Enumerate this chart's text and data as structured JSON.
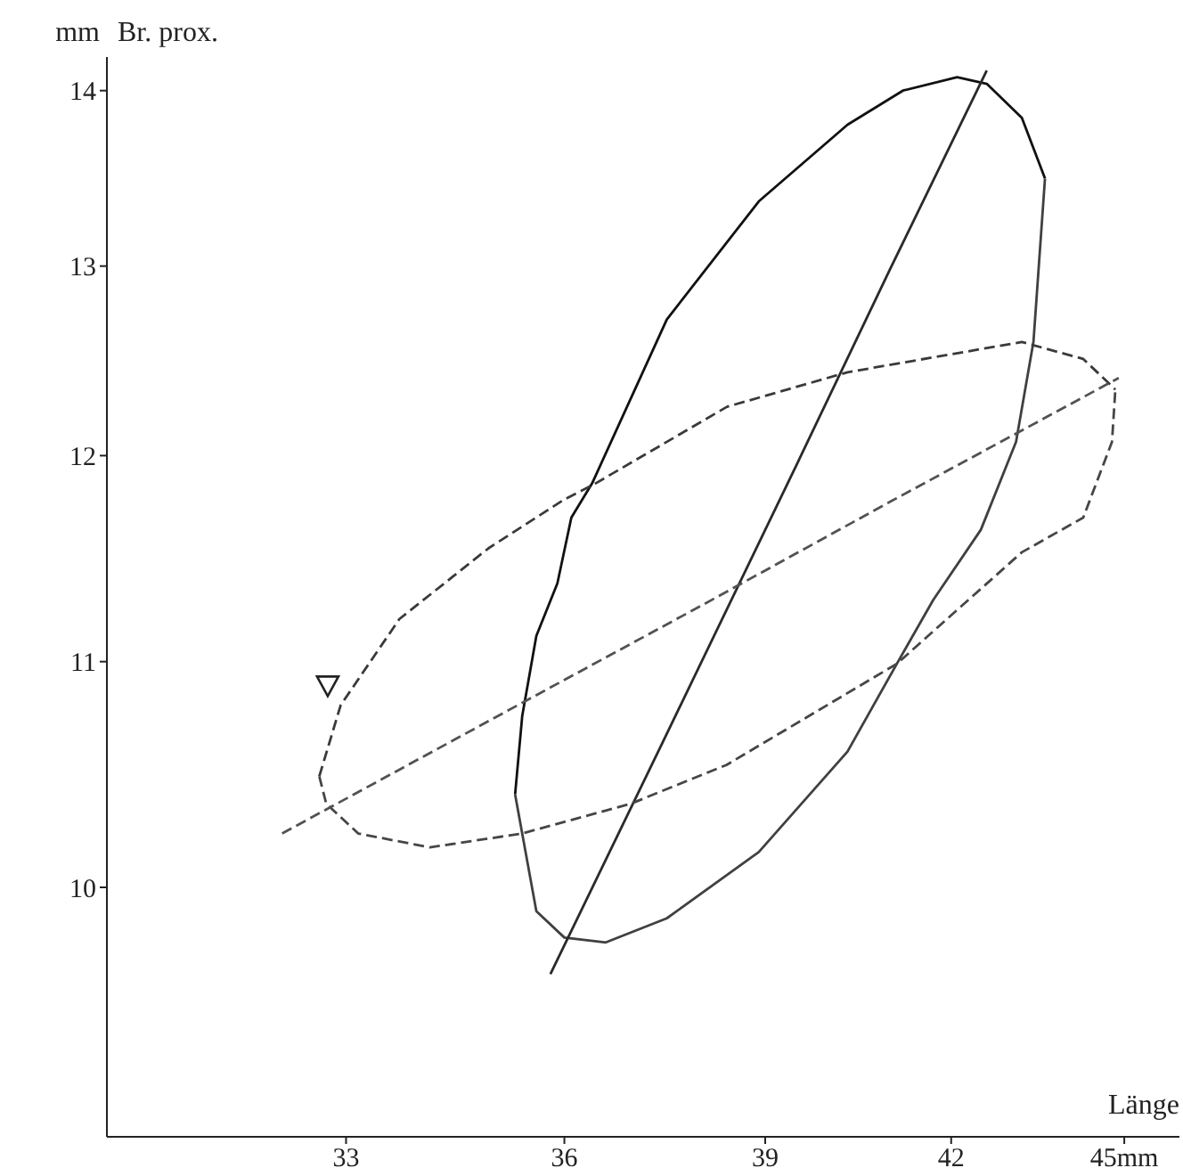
{
  "chart_data": {
    "type": "line",
    "xlabel": "Länge",
    "ylabel": "Br. prox.",
    "annotations": [
      "mm"
    ],
    "log": "xy",
    "grid": false,
    "xlim": [
      30,
      46
    ],
    "xticks": [
      33,
      36,
      39,
      42,
      {
        "value": 45,
        "label": "45mm"
      }
    ],
    "ylim": [
      9,
      14.2
    ],
    "yticks": [
      10,
      11,
      12,
      13,
      14
    ],
    "series": [
      {
        "color": "#111111",
        "line_style": "solid",
        "marker": "none",
        "x": [
          35.3,
          35.4,
          35.6,
          35.9,
          36.1,
          36.4,
          37.5,
          38.9,
          40.3,
          41.2,
          42.1,
          42.6,
          43.2,
          43.6
        ],
        "values": [
          10.4,
          10.75,
          11.12,
          11.37,
          11.69,
          11.86,
          12.71,
          13.36,
          13.8,
          14.0,
          14.08,
          14.04,
          13.84,
          13.49
        ]
      },
      {
        "color": "#404040",
        "line_style": "solid",
        "marker": "none",
        "x": [
          35.3,
          35.6,
          36.0,
          36.6,
          37.5,
          38.9,
          40.3,
          41.1,
          41.7,
          42.5,
          43.1,
          43.4,
          43.6
        ],
        "values": [
          10.4,
          9.9,
          9.79,
          9.77,
          9.87,
          10.15,
          10.59,
          10.99,
          11.29,
          11.63,
          12.07,
          12.59,
          13.49
        ]
      },
      {
        "color": "#2a2a2a",
        "line_style": "solid",
        "marker": "none",
        "x": [
          35.8,
          37.5,
          39.5,
          41.0,
          42.6
        ],
        "values": [
          9.64,
          10.67,
          11.96,
          12.99,
          14.12
        ]
      },
      {
        "color": "#3a3a3a",
        "line_style": "dashed",
        "marker": "none",
        "x": [
          32.65,
          32.93,
          33.71,
          34.93,
          36.0,
          36.45,
          38.41,
          40.3,
          43.2,
          44.27,
          44.84
        ],
        "values": [
          10.48,
          10.8,
          11.2,
          11.54,
          11.78,
          11.86,
          12.25,
          12.43,
          12.59,
          12.5,
          12.34
        ]
      },
      {
        "color": "#464646",
        "line_style": "dashed",
        "marker": "none",
        "x": [
          32.65,
          32.74,
          33.16,
          34.12,
          35.4,
          36.97,
          38.4,
          41.1,
          43.2,
          44.27,
          44.78,
          44.84
        ],
        "values": [
          10.48,
          10.36,
          10.23,
          10.17,
          10.23,
          10.36,
          10.53,
          10.99,
          11.52,
          11.69,
          12.07,
          12.34
        ]
      },
      {
        "color": "#525252",
        "line_style": "dashed",
        "marker": "none",
        "x": [
          32.17,
          35.0,
          38.0,
          41.0,
          44.9
        ],
        "values": [
          10.23,
          10.74,
          11.26,
          11.77,
          12.4
        ]
      },
      {
        "type": "scatter",
        "color": "#222222",
        "marker": "triangle",
        "x": [
          32.76
        ],
        "values": [
          10.89
        ]
      }
    ]
  }
}
